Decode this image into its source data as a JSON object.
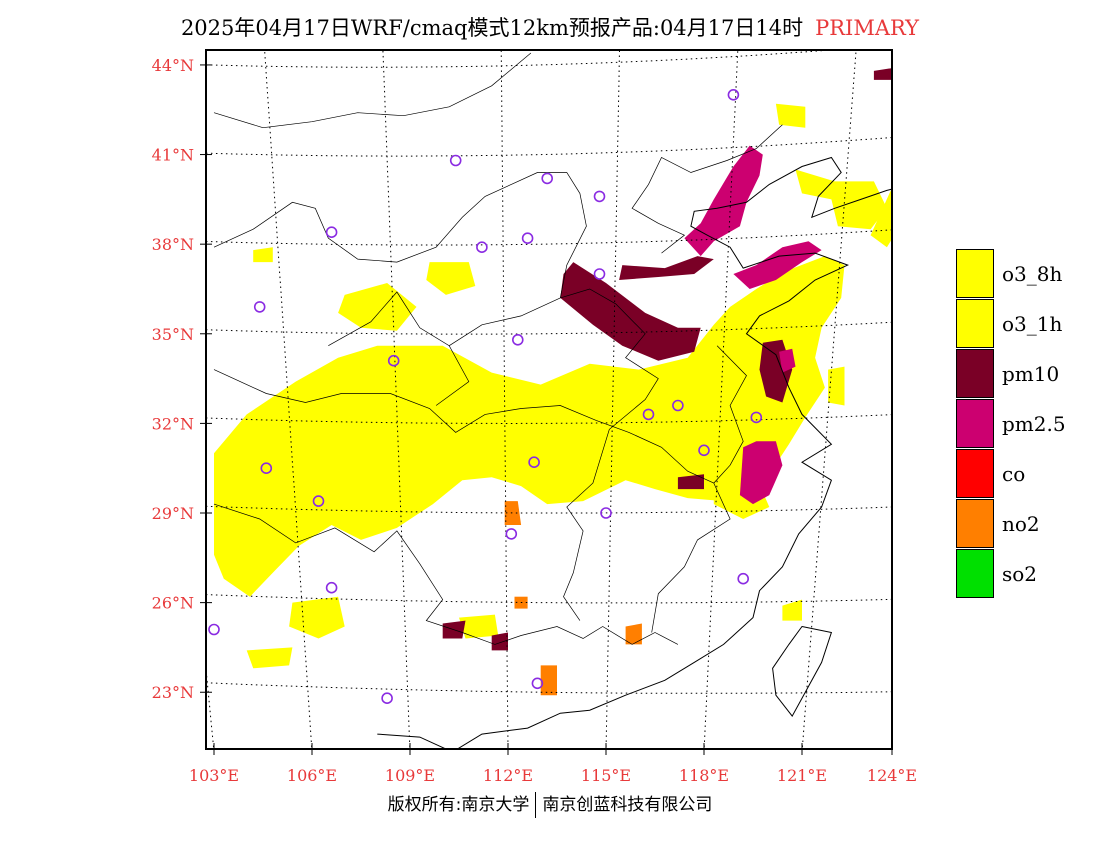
{
  "title": {
    "main": "2025年04月17日WRF/cmaq模式12km预报产品:04月17日14时",
    "tag": "PRIMARY"
  },
  "colors": {
    "axis_label": "#e8393a",
    "o3_8h": "#ffff00",
    "o3_1h": "#ffff00",
    "pm10": "#7a0026",
    "pm25": "#cc0070",
    "co": "#ff0000",
    "no2": "#ff7f00",
    "so2": "#00e000",
    "boundary": "#000000",
    "station_marker": "#8a2be2"
  },
  "axes": {
    "lat_labels": [
      "44°N",
      "41°N",
      "38°N",
      "35°N",
      "32°N",
      "29°N",
      "26°N",
      "23°N"
    ],
    "lat_values": [
      44,
      41,
      38,
      35,
      32,
      29,
      26,
      23
    ],
    "lon_labels": [
      "103°E",
      "106°E",
      "109°E",
      "112°E",
      "115°E",
      "118°E",
      "121°E",
      "124°E"
    ],
    "lon_values": [
      103,
      106,
      109,
      112,
      115,
      118,
      121,
      124
    ],
    "lon_range": [
      103,
      124
    ],
    "lat_range": [
      21.1,
      44.5
    ]
  },
  "legend": {
    "items": [
      {
        "key": "o3_8h",
        "label": "o3_8h",
        "color": "#ffff00"
      },
      {
        "key": "o3_1h",
        "label": "o3_1h",
        "color": "#ffff00"
      },
      {
        "key": "pm10",
        "label": "pm10",
        "color": "#7a0026"
      },
      {
        "key": "pm25",
        "label": "pm2.5",
        "color": "#cc0070"
      },
      {
        "key": "co",
        "label": "co",
        "color": "#ff0000"
      },
      {
        "key": "no2",
        "label": "no2",
        "color": "#ff7f00"
      },
      {
        "key": "so2",
        "label": "so2",
        "color": "#00e000"
      }
    ]
  },
  "stations": [
    {
      "lon": 118.9,
      "lat": 43.0
    },
    {
      "lon": 110.4,
      "lat": 40.8
    },
    {
      "lon": 113.2,
      "lat": 40.2
    },
    {
      "lon": 114.8,
      "lat": 39.6
    },
    {
      "lon": 106.6,
      "lat": 38.4
    },
    {
      "lon": 111.2,
      "lat": 37.9
    },
    {
      "lon": 112.6,
      "lat": 38.2
    },
    {
      "lon": 114.8,
      "lat": 37.0
    },
    {
      "lon": 104.4,
      "lat": 35.9
    },
    {
      "lon": 112.3,
      "lat": 34.8
    },
    {
      "lon": 108.5,
      "lat": 34.1
    },
    {
      "lon": 117.2,
      "lat": 32.6
    },
    {
      "lon": 116.3,
      "lat": 32.3
    },
    {
      "lon": 119.6,
      "lat": 32.2
    },
    {
      "lon": 118.0,
      "lat": 31.1
    },
    {
      "lon": 104.6,
      "lat": 30.5
    },
    {
      "lon": 112.8,
      "lat": 30.7
    },
    {
      "lon": 106.2,
      "lat": 29.4
    },
    {
      "lon": 115.0,
      "lat": 29.0
    },
    {
      "lon": 112.1,
      "lat": 28.3
    },
    {
      "lon": 119.2,
      "lat": 26.8
    },
    {
      "lon": 106.6,
      "lat": 26.5
    },
    {
      "lon": 103.0,
      "lat": 25.1
    },
    {
      "lon": 112.9,
      "lat": 23.3
    },
    {
      "lon": 108.3,
      "lat": 22.8
    }
  ],
  "regions": {
    "o3": [
      [
        [
          103,
          31
        ],
        [
          104,
          32.3
        ],
        [
          105.5,
          33.4
        ],
        [
          106.8,
          34.2
        ],
        [
          108,
          34.6
        ],
        [
          110,
          34.6
        ],
        [
          111.5,
          33.7
        ],
        [
          113,
          33.3
        ],
        [
          114.5,
          34
        ],
        [
          116,
          33.8
        ],
        [
          117.5,
          34.2
        ],
        [
          118.3,
          35.3
        ],
        [
          118.8,
          35.9
        ],
        [
          119.6,
          36.5
        ],
        [
          120.5,
          37.1
        ],
        [
          121.7,
          37.6
        ],
        [
          122.3,
          37.3
        ],
        [
          122.2,
          36.2
        ],
        [
          121.6,
          35.2
        ],
        [
          121.4,
          34.2
        ],
        [
          121.7,
          33.2
        ],
        [
          121.1,
          32.2
        ],
        [
          120.6,
          31.3
        ],
        [
          120,
          30.3
        ],
        [
          119.7,
          29.6
        ],
        [
          118.6,
          29.4
        ],
        [
          117.5,
          29.5
        ],
        [
          116.5,
          29.8
        ],
        [
          115.6,
          30.1
        ],
        [
          114.3,
          29.4
        ],
        [
          113.2,
          29.3
        ],
        [
          112.4,
          29.9
        ],
        [
          111.5,
          30.2
        ],
        [
          110.6,
          30.1
        ],
        [
          109.7,
          29.3
        ],
        [
          108.6,
          28.5
        ],
        [
          107.5,
          28.1
        ],
        [
          106.6,
          28.6
        ],
        [
          105.6,
          27.9
        ],
        [
          104.8,
          27.0
        ],
        [
          104.1,
          26.2
        ],
        [
          103.3,
          26.8
        ],
        [
          103,
          27.6
        ]
      ]
    ],
    "o3_minor": [
      [
        [
          107,
          36.3
        ],
        [
          108.3,
          36.7
        ],
        [
          109.2,
          35.9
        ],
        [
          108.6,
          35.1
        ],
        [
          107.5,
          35.2
        ],
        [
          106.8,
          35.7
        ]
      ],
      [
        [
          109.6,
          37.4
        ],
        [
          110.8,
          37.4
        ],
        [
          111,
          36.6
        ],
        [
          110.1,
          36.3
        ],
        [
          109.5,
          36.8
        ]
      ],
      [
        [
          120.8,
          40.5
        ],
        [
          122,
          40.1
        ],
        [
          123.2,
          40.1
        ],
        [
          123.6,
          39.2
        ],
        [
          123.1,
          38.5
        ],
        [
          122.1,
          38.6
        ],
        [
          121.9,
          39.5
        ],
        [
          121,
          39.7
        ]
      ],
      [
        [
          123.8,
          40.0
        ],
        [
          124,
          40.5
        ],
        [
          124,
          38.6
        ],
        [
          123.6,
          37.9
        ],
        [
          123.1,
          38.3
        ]
      ],
      [
        [
          120.2,
          42.7
        ],
        [
          121.1,
          42.6
        ],
        [
          121.1,
          41.9
        ],
        [
          120.3,
          42.0
        ]
      ],
      [
        [
          104.2,
          37.8
        ],
        [
          104.8,
          37.9
        ],
        [
          104.8,
          37.4
        ],
        [
          104.2,
          37.4
        ]
      ],
      [
        [
          105.4,
          26.0
        ],
        [
          106.8,
          26.2
        ],
        [
          107,
          25.2
        ],
        [
          106.2,
          24.8
        ],
        [
          105.3,
          25.2
        ]
      ],
      [
        [
          110.5,
          25.5
        ],
        [
          111.6,
          25.6
        ],
        [
          111.7,
          24.9
        ],
        [
          110.7,
          24.8
        ]
      ],
      [
        [
          104,
          24.4
        ],
        [
          105.4,
          24.5
        ],
        [
          105.3,
          23.9
        ],
        [
          104.2,
          23.8
        ]
      ],
      [
        [
          121.8,
          33.8
        ],
        [
          122.3,
          33.9
        ],
        [
          122.3,
          32.6
        ],
        [
          121.8,
          32.7
        ]
      ],
      [
        [
          120.4,
          25.9
        ],
        [
          121,
          26.1
        ],
        [
          121,
          25.4
        ],
        [
          120.4,
          25.4
        ]
      ],
      [
        [
          118.3,
          30.0
        ],
        [
          119.6,
          30.2
        ],
        [
          120,
          29.2
        ],
        [
          119.2,
          28.8
        ],
        [
          118.3,
          29.3
        ]
      ]
    ],
    "pm10": [
      [
        [
          114,
          37.4
        ],
        [
          115,
          36.7
        ],
        [
          116.2,
          35.7
        ],
        [
          117.2,
          35.2
        ],
        [
          117.9,
          35.2
        ],
        [
          117.7,
          34.4
        ],
        [
          116.6,
          34.1
        ],
        [
          115.5,
          34.6
        ],
        [
          114.6,
          35.3
        ],
        [
          113.6,
          36.2
        ],
        [
          113.7,
          37.0
        ]
      ],
      [
        [
          115.5,
          37.3
        ],
        [
          116.8,
          37.2
        ],
        [
          117.8,
          37.6
        ],
        [
          118.3,
          37.5
        ],
        [
          117.7,
          37.0
        ],
        [
          116.6,
          36.9
        ],
        [
          115.4,
          36.8
        ]
      ],
      [
        [
          119.8,
          34.7
        ],
        [
          120.4,
          34.8
        ],
        [
          120.7,
          33.8
        ],
        [
          120.4,
          32.7
        ],
        [
          119.9,
          32.9
        ],
        [
          119.7,
          33.8
        ]
      ],
      [
        [
          110,
          25.3
        ],
        [
          110.7,
          25.4
        ],
        [
          110.6,
          24.8
        ],
        [
          110,
          24.8
        ]
      ],
      [
        [
          111.5,
          24.9
        ],
        [
          112,
          25.0
        ],
        [
          112.0,
          24.4
        ],
        [
          111.5,
          24.4
        ]
      ],
      [
        [
          117.2,
          30.2
        ],
        [
          118.0,
          30.3
        ],
        [
          118.0,
          29.8
        ],
        [
          117.2,
          29.8
        ]
      ],
      [
        [
          119.2,
          30.1
        ],
        [
          119.7,
          30.1
        ],
        [
          119.7,
          29.6
        ],
        [
          119.2,
          29.6
        ]
      ],
      [
        [
          123.2,
          43.8
        ],
        [
          123.8,
          43.9
        ],
        [
          123.8,
          43.5
        ],
        [
          123.2,
          43.5
        ]
      ]
    ],
    "pm25": [
      [
        [
          117.4,
          38.2
        ],
        [
          117.9,
          38.7
        ],
        [
          118.3,
          39.5
        ],
        [
          118.9,
          40.6
        ],
        [
          119.4,
          41.3
        ],
        [
          119.8,
          41.0
        ],
        [
          119.7,
          40.3
        ],
        [
          119.3,
          39.4
        ],
        [
          119.1,
          38.6
        ],
        [
          118.3,
          38.1
        ],
        [
          117.9,
          37.6
        ]
      ],
      [
        [
          118.9,
          37.0
        ],
        [
          119.6,
          37.3
        ],
        [
          120.4,
          37.9
        ],
        [
          121.2,
          38.1
        ],
        [
          121.6,
          37.8
        ],
        [
          121.0,
          37.4
        ],
        [
          120.2,
          36.8
        ],
        [
          119.4,
          36.5
        ]
      ],
      [
        [
          119.2,
          31.2
        ],
        [
          119.6,
          31.4
        ],
        [
          120.2,
          31.4
        ],
        [
          120.4,
          30.6
        ],
        [
          120.0,
          29.6
        ],
        [
          119.5,
          29.3
        ],
        [
          119.1,
          29.6
        ]
      ],
      [
        [
          120.3,
          34.4
        ],
        [
          120.7,
          34.5
        ],
        [
          120.8,
          33.9
        ],
        [
          120.4,
          33.7
        ]
      ]
    ],
    "no2": [
      [
        [
          111.9,
          29.4
        ],
        [
          112.3,
          29.4
        ],
        [
          112.4,
          28.6
        ],
        [
          111.9,
          28.6
        ]
      ],
      [
        [
          113.0,
          23.9
        ],
        [
          113.5,
          23.9
        ],
        [
          113.5,
          22.9
        ],
        [
          113.0,
          22.9
        ]
      ],
      [
        [
          115.6,
          25.2
        ],
        [
          116.1,
          25.3
        ],
        [
          116.1,
          24.6
        ],
        [
          115.6,
          24.6
        ]
      ],
      [
        [
          112.2,
          26.2
        ],
        [
          112.6,
          26.2
        ],
        [
          112.6,
          25.8
        ],
        [
          112.2,
          25.8
        ]
      ]
    ]
  },
  "footer": {
    "left": "版权所有:南京大学",
    "right": "南京创蓝科技有限公司"
  }
}
